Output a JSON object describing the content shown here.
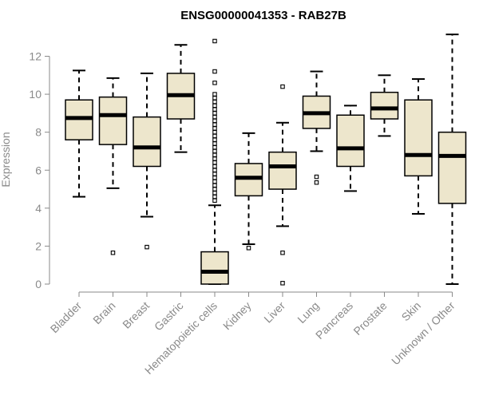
{
  "chart_data": {
    "type": "boxplot",
    "title": "ENSG00000041353 - RAB27B",
    "xlabel": "",
    "ylabel": "Expression",
    "ylim": [
      0,
      13.3
    ],
    "yticks": [
      0,
      2,
      4,
      6,
      8,
      10,
      12
    ],
    "box_fill": "#ede6cc",
    "categories": [
      "Bladder",
      "Brain",
      "Breast",
      "Gastric",
      "Hematopoietic cells",
      "Kidney",
      "Liver",
      "Lung",
      "Pancreas",
      "Prostate",
      "Skin",
      "Unknown / Other"
    ],
    "boxes": [
      {
        "whisker_low": 4.6,
        "q1": 7.6,
        "median": 8.75,
        "q3": 9.7,
        "whisker_high": 11.25,
        "outliers": []
      },
      {
        "whisker_low": 5.05,
        "q1": 7.35,
        "median": 8.9,
        "q3": 9.85,
        "whisker_high": 10.85,
        "outliers": [
          1.65
        ]
      },
      {
        "whisker_low": 3.55,
        "q1": 6.2,
        "median": 7.2,
        "q3": 8.8,
        "whisker_high": 11.1,
        "outliers": [
          1.95
        ]
      },
      {
        "whisker_low": 6.95,
        "q1": 8.7,
        "median": 9.95,
        "q3": 11.1,
        "whisker_high": 12.6,
        "outliers": []
      },
      {
        "whisker_low": 0.0,
        "q1": 0.0,
        "median": 0.65,
        "q3": 1.7,
        "whisker_high": 4.15,
        "outliers": [
          4.4,
          4.6,
          4.8,
          5.0,
          5.2,
          5.4,
          5.6,
          5.8,
          6.0,
          6.2,
          6.4,
          6.6,
          6.8,
          7.0,
          7.2,
          7.4,
          7.6,
          7.8,
          8.0,
          8.2,
          8.4,
          8.6,
          8.8,
          9.0,
          9.2,
          9.4,
          9.6,
          9.8,
          10.0,
          10.6,
          11.2,
          12.8
        ]
      },
      {
        "whisker_low": 2.1,
        "q1": 4.65,
        "median": 5.6,
        "q3": 6.35,
        "whisker_high": 7.95,
        "outliers": [
          1.9
        ]
      },
      {
        "whisker_low": 3.05,
        "q1": 5.0,
        "median": 6.2,
        "q3": 6.95,
        "whisker_high": 8.5,
        "outliers": [
          0.05,
          1.65,
          10.4
        ]
      },
      {
        "whisker_low": 7.0,
        "q1": 8.2,
        "median": 9.0,
        "q3": 9.9,
        "whisker_high": 11.2,
        "outliers": [
          5.35,
          5.65
        ]
      },
      {
        "whisker_low": 4.9,
        "q1": 6.2,
        "median": 7.15,
        "q3": 8.9,
        "whisker_high": 9.4,
        "outliers": []
      },
      {
        "whisker_low": 7.8,
        "q1": 8.7,
        "median": 9.25,
        "q3": 10.1,
        "whisker_high": 11.0,
        "outliers": []
      },
      {
        "whisker_low": 3.7,
        "q1": 5.7,
        "median": 6.8,
        "q3": 9.7,
        "whisker_high": 10.8,
        "outliers": []
      },
      {
        "whisker_low": 0.0,
        "q1": 4.25,
        "median": 6.75,
        "q3": 8.0,
        "whisker_high": 13.15,
        "outliers": []
      }
    ]
  }
}
